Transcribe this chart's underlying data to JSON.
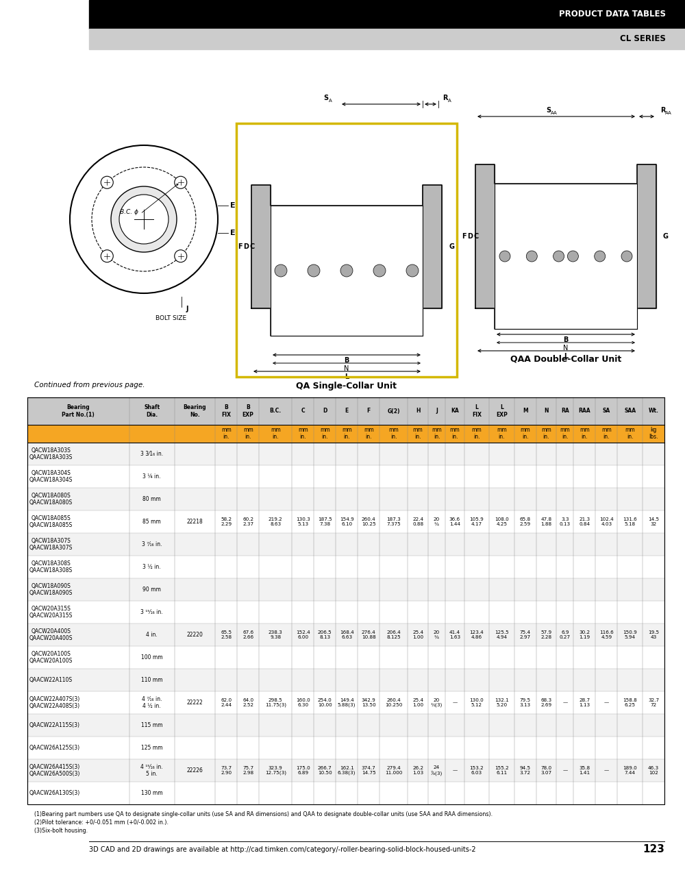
{
  "header_black_text": "PRODUCT DATA TABLES",
  "header_gray_text": "CL SERIES",
  "continued_text": "Continued from previous page.",
  "orange_color": "#f5a623",
  "footer_note1": "(1)Bearing part numbers use QA to designate single-collar units (use SA and RA dimensions) and QAA to designate double-collar units (use SAA and RAA dimensions).",
  "footer_note2": "(2)Pilot tolerance: +0/-0.051 mm (+0/-0.002 in.).",
  "footer_note3": "(3)Six-bolt housing.",
  "footer_cad": "3D CAD and 2D drawings are available at http://cad.timken.com/category/-roller-bearing-solid-block-housed-units-2",
  "footer_page": "123",
  "col_labels": [
    "Bearing\nPart No.(1)",
    "Shaft\nDia.",
    "Bearing\nNo.",
    "B\nFIX",
    "B\nEXP",
    "B.C.",
    "C",
    "D",
    "E",
    "F",
    "G(2)",
    "H",
    "J",
    "KA",
    "L\nFIX",
    "L\nEXP",
    "M",
    "N",
    "RA",
    "RAA",
    "SA",
    "SAA",
    "Wt."
  ],
  "col_widths_rel": [
    130,
    58,
    52,
    28,
    28,
    42,
    28,
    28,
    28,
    28,
    36,
    26,
    22,
    24,
    32,
    32,
    28,
    26,
    22,
    28,
    28,
    32,
    28
  ],
  "units_mm": [
    "",
    "",
    "",
    "mm",
    "mm",
    "mm",
    "mm",
    "mm",
    "mm",
    "mm",
    "mm",
    "mm",
    "mm",
    "mm",
    "mm",
    "mm",
    "mm",
    "mm",
    "mm",
    "mm",
    "mm",
    "mm",
    "kg"
  ],
  "units_in": [
    "",
    "",
    "",
    "in.",
    "in.",
    "in.",
    "in.",
    "in.",
    "in.",
    "in.",
    "in.",
    "in.",
    "in.",
    "in.",
    "in.",
    "in.",
    "in.",
    "in.",
    "in.",
    "in.",
    "in.",
    "in.",
    "lbs."
  ],
  "units_label_mm": [
    "",
    "",
    "mm",
    "mm",
    "mm",
    "mm",
    "mm",
    "mm",
    "mm",
    "mm",
    "mm",
    "mm",
    "mm",
    "mm",
    "mm",
    "mm",
    "mm",
    "mm",
    "mm",
    "mm",
    "mm",
    "mm",
    "kg"
  ],
  "table_rows": [
    [
      "QACW18A303S\nQAACW18A303S",
      "3 3⁄1₆ in.",
      "",
      "",
      "",
      "",
      "",
      "",
      "",
      "",
      "",
      "",
      "",
      "",
      "",
      "",
      "",
      "",
      "",
      "",
      "",
      "",
      ""
    ],
    [
      "QACW18A304S\nQAACW18A304S",
      "3 ¼ in.",
      "",
      "",
      "",
      "",
      "",
      "",
      "",
      "",
      "",
      "",
      "",
      "",
      "",
      "",
      "",
      "",
      "",
      "",
      "",
      "",
      ""
    ],
    [
      "QACW18A080S\nQAACW18A080S",
      "80 mm",
      "",
      "",
      "",
      "",
      "",
      "",
      "",
      "",
      "",
      "",
      "",
      "",
      "",
      "",
      "",
      "",
      "",
      "",
      "",
      "",
      ""
    ],
    [
      "QACW18A085S\nQAACW18A085S",
      "85 mm",
      "22218",
      "58.2\n2.29",
      "60.2\n2.37",
      "219.2\n8.63",
      "130.3\n5.13",
      "187.5\n7.38",
      "154.9\n6.10",
      "260.4\n10.25",
      "187.3\n7.375",
      "22.4\n0.88",
      "20\n¾",
      "36.6\n1.44",
      "105.9\n4.17",
      "108.0\n4.25",
      "65.8\n2.59",
      "47.8\n1.88",
      "3.3\n0.13",
      "21.3\n0.84",
      "102.4\n4.03",
      "131.6\n5.18",
      "14.5\n32"
    ],
    [
      "QACW18A307S\nQAACW18A307S",
      "3 ⁷⁄₁₆ in.",
      "",
      "",
      "",
      "",
      "",
      "",
      "",
      "",
      "",
      "",
      "",
      "",
      "",
      "",
      "",
      "",
      "",
      "",
      "",
      "",
      ""
    ],
    [
      "QACW18A308S\nQAACW18A308S",
      "3 ½ in.",
      "",
      "",
      "",
      "",
      "",
      "",
      "",
      "",
      "",
      "",
      "",
      "",
      "",
      "",
      "",
      "",
      "",
      "",
      "",
      "",
      ""
    ],
    [
      "QACW18A090S\nQAACW18A090S",
      "90 mm",
      "",
      "",
      "",
      "",
      "",
      "",
      "",
      "",
      "",
      "",
      "",
      "",
      "",
      "",
      "",
      "",
      "",
      "",
      "",
      "",
      ""
    ],
    [
      "QACW20A315S\nQAACW20A315S",
      "3 ¹⁵⁄₁₆ in.",
      "",
      "",
      "",
      "",
      "",
      "",
      "",
      "",
      "",
      "",
      "",
      "",
      "",
      "",
      "",
      "",
      "",
      "",
      "",
      "",
      ""
    ],
    [
      "QACW20A400S\nQAACW20A400S",
      "4 in.",
      "22220",
      "65.5\n2.58",
      "67.6\n2.66",
      "238.3\n9.38",
      "152.4\n6.00",
      "206.5\n8.13",
      "168.4\n6.63",
      "276.4\n10.88",
      "206.4\n8.125",
      "25.4\n1.00",
      "20\n¾",
      "41.4\n1.63",
      "123.4\n4.86",
      "125.5\n4.94",
      "75.4\n2.97",
      "57.9\n2.28",
      "6.9\n0.27",
      "30.2\n1.19",
      "116.6\n4.59",
      "150.9\n5.94",
      "19.5\n43"
    ],
    [
      "QACW20A100S\nQAACW20A100S",
      "100 mm",
      "",
      "",
      "",
      "",
      "",
      "",
      "",
      "",
      "",
      "",
      "",
      "",
      "",
      "",
      "",
      "",
      "",
      "",
      "",
      "",
      ""
    ],
    [
      "QAACW22A110S",
      "110 mm",
      "",
      "",
      "",
      "",
      "",
      "",
      "",
      "",
      "",
      "",
      "",
      "",
      "",
      "",
      "",
      "",
      "",
      "",
      "",
      "",
      ""
    ],
    [
      "QAACW22A407S(3)\nQAACW22A408S(3)",
      "4 ⁷⁄₁₆ in.\n4 ½ in.",
      "22222",
      "62.0\n2.44",
      "64.0\n2.52",
      "298.5\n11.75(3)",
      "160.0\n6.30",
      "254.0\n10.00",
      "149.4\n5.88(3)",
      "342.9\n13.50",
      "260.4\n10.250",
      "25.4\n1.00",
      "20\n¾(3)",
      "—",
      "130.0\n5.12",
      "132.1\n5.20",
      "79.5\n3.13",
      "68.3\n2.69",
      "—",
      "28.7\n1.13",
      "—",
      "158.8\n6.25",
      "32.7\n72"
    ],
    [
      "QAACW22A115S(3)",
      "115 mm",
      "",
      "",
      "",
      "",
      "",
      "",
      "",
      "",
      "",
      "",
      "",
      "",
      "",
      "",
      "",
      "",
      "",
      "",
      "",
      "",
      ""
    ],
    [
      "QAACW26A125S(3)",
      "125 mm",
      "",
      "",
      "",
      "",
      "",
      "",
      "",
      "",
      "",
      "",
      "",
      "",
      "",
      "",
      "",
      "",
      "",
      "",
      "",
      "",
      ""
    ],
    [
      "QAACW26A415S(3)\nQAACW26A500S(3)",
      "4 ¹⁵⁄₁₆ in.\n5 in.",
      "22226",
      "73.7\n2.90",
      "75.7\n2.98",
      "323.9\n12.75(3)",
      "175.0\n6.89",
      "266.7\n10.50",
      "162.1\n6.38(3)",
      "374.7\n14.75",
      "279.4\n11.000",
      "26.2\n1.03",
      "24\n⁷⁄₈(3)",
      "—",
      "153.2\n6.03",
      "155.2\n6.11",
      "94.5\n3.72",
      "78.0\n3.07",
      "—",
      "35.8\n1.41",
      "—",
      "189.0\n7.44",
      "46.3\n102"
    ],
    [
      "QAACW26A130S(3)",
      "130 mm",
      "",
      "",
      "",
      "",
      "",
      "",
      "",
      "",
      "",
      "",
      "",
      "",
      "",
      "",
      "",
      "",
      "",
      "",
      "",
      "",
      ""
    ]
  ],
  "highlighted_row": 3
}
